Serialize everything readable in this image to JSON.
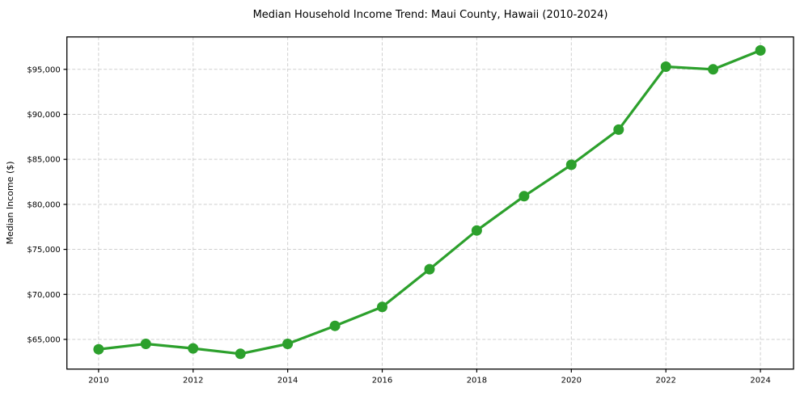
{
  "page": {
    "background_color": "#ffffff"
  },
  "chart_data": {
    "type": "line",
    "title": "Median Household Income Trend: Maui County, Hawaii (2010-2024)",
    "xlabel": "",
    "ylabel": "Median Income ($)",
    "x": [
      2010,
      2011,
      2012,
      2013,
      2014,
      2015,
      2016,
      2017,
      2018,
      2019,
      2020,
      2021,
      2022,
      2023,
      2024
    ],
    "series": [
      {
        "name": "Median household income",
        "values": [
          63900,
          64500,
          64000,
          63400,
          64500,
          66500,
          68600,
          72800,
          77100,
          80900,
          84400,
          88300,
          95300,
          95000,
          97100
        ]
      }
    ],
    "line_color": "#2ca02c",
    "marker": "circle",
    "marker_color": "#2ca02c",
    "grid": true,
    "grid_style": "dashed",
    "grid_color": "#cfcfcf",
    "frame_color": "#000000",
    "legend_position": "none",
    "xlim": [
      2009.33,
      2024.7
    ],
    "ylim": [
      61700,
      98600
    ],
    "xticks": {
      "values": [
        2010,
        2012,
        2014,
        2016,
        2018,
        2020,
        2022,
        2024
      ],
      "labels": [
        "2010",
        "2012",
        "2014",
        "2016",
        "2018",
        "2020",
        "2022",
        "2024"
      ]
    },
    "yticks": {
      "values": [
        65000,
        70000,
        75000,
        80000,
        85000,
        90000,
        95000
      ],
      "labels": [
        "$65,000",
        "$70,000",
        "$75,000",
        "$80,000",
        "$85,000",
        "$90,000",
        "$95,000"
      ]
    }
  }
}
